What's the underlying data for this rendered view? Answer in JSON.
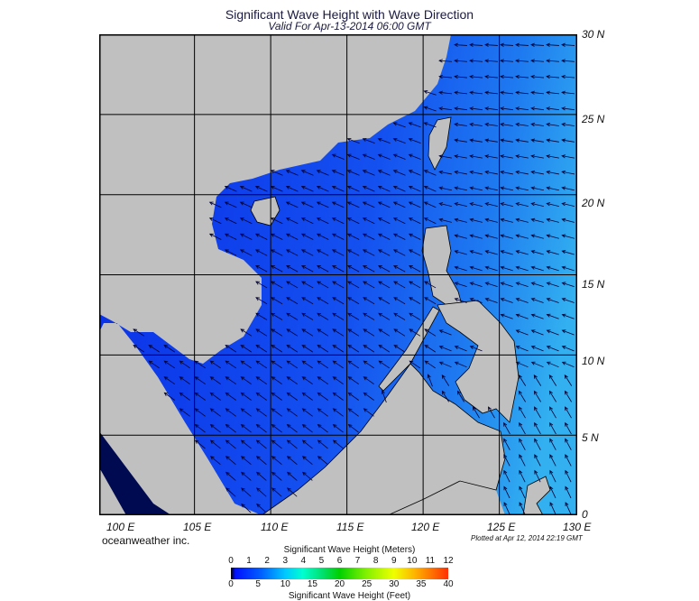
{
  "header": {
    "title": "Significant Wave Height with Wave Direction",
    "subtitle": "Valid For Apr-13-2014 06:00 GMT"
  },
  "map": {
    "longitude_labels": [
      "100 E",
      "105 E",
      "110 E",
      "115 E",
      "120 E",
      "125 E",
      "130 E"
    ],
    "latitude_labels": [
      "30 N",
      "25 N",
      "20 N",
      "15 N",
      "10 N",
      "5 N",
      "0"
    ],
    "land_color": "#c0c0c0",
    "sea_color_low": "#0a3cf0",
    "sea_color_high": "#2aa8f0",
    "arrow_color": "#000033"
  },
  "footer": {
    "brand": "oceanweather inc.",
    "plotted": "Plotted at Apr 12, 2014 22:19 GMT"
  },
  "colorbar": {
    "title_meters": "Significant Wave Height (Meters)",
    "title_feet": "Significant Wave Height (Feet)",
    "meters_ticks": [
      "0",
      "1",
      "2",
      "3",
      "4",
      "5",
      "6",
      "7",
      "8",
      "9",
      "10",
      "11",
      "12"
    ],
    "feet_ticks": [
      "0",
      "5",
      "10",
      "15",
      "20",
      "25",
      "30",
      "35",
      "40"
    ]
  }
}
